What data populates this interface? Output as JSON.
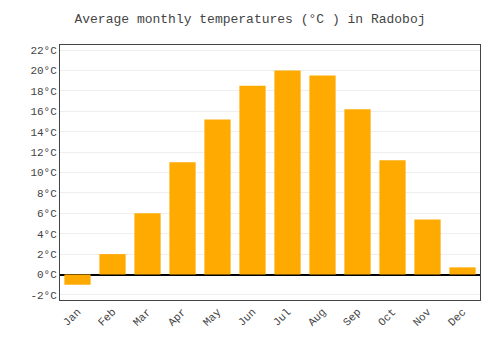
{
  "chart_data": {
    "type": "bar",
    "title": "Average monthly temperatures (°C ) in Radoboj",
    "categories": [
      "Jan",
      "Feb",
      "Mar",
      "Apr",
      "May",
      "Jun",
      "Jul",
      "Aug",
      "Sep",
      "Oct",
      "Nov",
      "Dec"
    ],
    "values": [
      -1.0,
      2.0,
      6.0,
      11.0,
      15.2,
      18.5,
      20.0,
      19.5,
      16.2,
      11.2,
      5.4,
      0.7
    ],
    "color": "#FFAA00",
    "ylim": [
      -2.5,
      22.5
    ],
    "yticks": [
      {
        "value": -2,
        "label": "-2°C"
      },
      {
        "value": 0,
        "label": "0°C"
      },
      {
        "value": 2,
        "label": "2°C"
      },
      {
        "value": 4,
        "label": "4°C"
      },
      {
        "value": 6,
        "label": "6°C"
      },
      {
        "value": 8,
        "label": "8°C"
      },
      {
        "value": 10,
        "label": "10°C"
      },
      {
        "value": 12,
        "label": "12°C"
      },
      {
        "value": 14,
        "label": "14°C"
      },
      {
        "value": 16,
        "label": "16°C"
      },
      {
        "value": 18,
        "label": "18°C"
      },
      {
        "value": 20,
        "label": "20°C"
      },
      {
        "value": 22,
        "label": "22°C"
      }
    ],
    "grid": true
  }
}
